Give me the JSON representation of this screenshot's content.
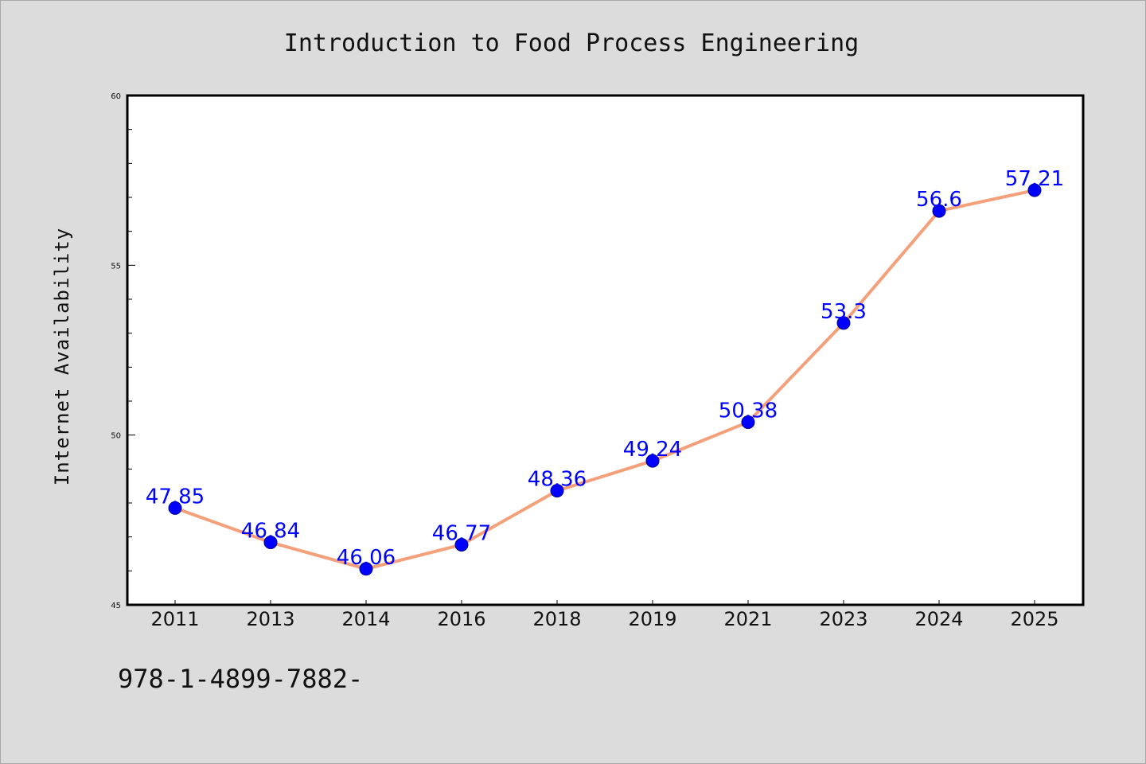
{
  "chart_data": {
    "type": "line",
    "title": "Introduction to Food Process Engineering",
    "ylabel": "Internet Availability",
    "xlabel": "",
    "categories": [
      "2011",
      "2013",
      "2014",
      "2016",
      "2018",
      "2019",
      "2021",
      "2023",
      "2024",
      "2025"
    ],
    "series": [
      {
        "values": [
          47.85,
          46.84,
          46.06,
          46.77,
          48.36,
          49.24,
          50.38,
          53.3,
          56.6,
          57.21
        ],
        "line_color": "#f4a07a",
        "marker_color": "#0000ff"
      }
    ],
    "data_labels": [
      "47.85",
      "46.84",
      "46.06",
      "46.77",
      "48.36",
      "49.24",
      "50.38",
      "53.3",
      "56.6",
      "57.21"
    ],
    "ylim": [
      45,
      60
    ],
    "yticks": [
      "45",
      "50",
      "55",
      "60"
    ],
    "grid": false,
    "legend": "none",
    "footer_text": "978-1-4899-7882-"
  }
}
